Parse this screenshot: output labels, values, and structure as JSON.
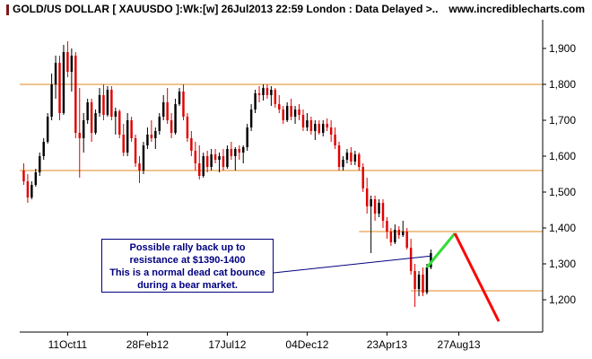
{
  "header": {
    "title": "GOLD/US DOLLAR [ XAUUSDO ]:Wk:[w]  26Jul2013 22:59 London : Data Delayed >..",
    "site": "www.incrediblecharts.com"
  },
  "annotation": {
    "lines": [
      "Possible rally back up to",
      "resistance at $1390-1400",
      "This is a normal dead cat bounce",
      "during a bear market."
    ]
  },
  "chart_data": {
    "type": "candlestick",
    "title": "GOLD/US DOLLAR [ XAUUSDO ]:Wk:[w]  26Jul2013 22:59 London : Data Delayed >..",
    "ylim": [
      1110,
      1980
    ],
    "y_ticks": [
      {
        "value": 1200,
        "label": "1,200"
      },
      {
        "value": 1300,
        "label": "1,300"
      },
      {
        "value": 1400,
        "label": "1,400"
      },
      {
        "value": 1500,
        "label": "1,500"
      },
      {
        "value": 1600,
        "label": "1,600"
      },
      {
        "value": 1700,
        "label": "1,700"
      },
      {
        "value": 1800,
        "label": "1,800"
      },
      {
        "value": 1900,
        "label": "1,900"
      }
    ],
    "x_ticks": [
      {
        "index": 11,
        "label": "11Oct11"
      },
      {
        "index": 31,
        "label": "28Feb12"
      },
      {
        "index": 51,
        "label": "17Jul12"
      },
      {
        "index": 71,
        "label": "04Dec12"
      },
      {
        "index": 91,
        "label": "23Apr13"
      },
      {
        "index": 109,
        "label": "27Aug13"
      }
    ],
    "x_range": [
      -1,
      130
    ],
    "grid": false,
    "colors": {
      "up": "#000000",
      "down": "#e00000",
      "resistance": "#e08a1e",
      "projection_up": "#33dd33",
      "projection_down": "#ff0000",
      "pointer": "#000080"
    },
    "candles": [
      {
        "o": 1560,
        "h": 1580,
        "l": 1520,
        "c": 1530
      },
      {
        "o": 1530,
        "h": 1550,
        "l": 1470,
        "c": 1485
      },
      {
        "o": 1485,
        "h": 1530,
        "l": 1480,
        "c": 1520
      },
      {
        "o": 1520,
        "h": 1565,
        "l": 1515,
        "c": 1555
      },
      {
        "o": 1555,
        "h": 1610,
        "l": 1545,
        "c": 1600
      },
      {
        "o": 1600,
        "h": 1650,
        "l": 1590,
        "c": 1640
      },
      {
        "o": 1640,
        "h": 1720,
        "l": 1635,
        "c": 1710
      },
      {
        "o": 1710,
        "h": 1830,
        "l": 1700,
        "c": 1800
      },
      {
        "o": 1800,
        "h": 1880,
        "l": 1760,
        "c": 1860
      },
      {
        "o": 1860,
        "h": 1880,
        "l": 1700,
        "c": 1720
      },
      {
        "o": 1720,
        "h": 1910,
        "l": 1715,
        "c": 1890
      },
      {
        "o": 1890,
        "h": 1920,
        "l": 1820,
        "c": 1835
      },
      {
        "o": 1835,
        "h": 1900,
        "l": 1780,
        "c": 1880
      },
      {
        "o": 1880,
        "h": 1890,
        "l": 1650,
        "c": 1665
      },
      {
        "o": 1665,
        "h": 1790,
        "l": 1540,
        "c": 1650
      },
      {
        "o": 1650,
        "h": 1720,
        "l": 1610,
        "c": 1700
      },
      {
        "o": 1700,
        "h": 1760,
        "l": 1690,
        "c": 1750
      },
      {
        "o": 1750,
        "h": 1760,
        "l": 1640,
        "c": 1665
      },
      {
        "o": 1665,
        "h": 1730,
        "l": 1660,
        "c": 1720
      },
      {
        "o": 1720,
        "h": 1790,
        "l": 1710,
        "c": 1770
      },
      {
        "o": 1770,
        "h": 1800,
        "l": 1700,
        "c": 1715
      },
      {
        "o": 1715,
        "h": 1795,
        "l": 1710,
        "c": 1785
      },
      {
        "o": 1785,
        "h": 1795,
        "l": 1700,
        "c": 1710
      },
      {
        "o": 1710,
        "h": 1735,
        "l": 1660,
        "c": 1725
      },
      {
        "o": 1725,
        "h": 1730,
        "l": 1650,
        "c": 1660
      },
      {
        "o": 1660,
        "h": 1690,
        "l": 1600,
        "c": 1610
      },
      {
        "o": 1610,
        "h": 1720,
        "l": 1600,
        "c": 1700
      },
      {
        "o": 1700,
        "h": 1710,
        "l": 1640,
        "c": 1650
      },
      {
        "o": 1650,
        "h": 1660,
        "l": 1570,
        "c": 1580
      },
      {
        "o": 1580,
        "h": 1600,
        "l": 1525,
        "c": 1560
      },
      {
        "o": 1560,
        "h": 1640,
        "l": 1550,
        "c": 1630
      },
      {
        "o": 1630,
        "h": 1680,
        "l": 1620,
        "c": 1660
      },
      {
        "o": 1660,
        "h": 1700,
        "l": 1640,
        "c": 1650
      },
      {
        "o": 1650,
        "h": 1680,
        "l": 1620,
        "c": 1670
      },
      {
        "o": 1670,
        "h": 1720,
        "l": 1660,
        "c": 1710
      },
      {
        "o": 1710,
        "h": 1770,
        "l": 1700,
        "c": 1750
      },
      {
        "o": 1750,
        "h": 1790,
        "l": 1690,
        "c": 1700
      },
      {
        "o": 1700,
        "h": 1720,
        "l": 1650,
        "c": 1665
      },
      {
        "o": 1665,
        "h": 1760,
        "l": 1660,
        "c": 1745
      },
      {
        "o": 1745,
        "h": 1790,
        "l": 1740,
        "c": 1780
      },
      {
        "o": 1780,
        "h": 1800,
        "l": 1700,
        "c": 1710
      },
      {
        "o": 1710,
        "h": 1720,
        "l": 1640,
        "c": 1650
      },
      {
        "o": 1650,
        "h": 1670,
        "l": 1600,
        "c": 1615
      },
      {
        "o": 1615,
        "h": 1640,
        "l": 1560,
        "c": 1580
      },
      {
        "o": 1580,
        "h": 1630,
        "l": 1535,
        "c": 1545
      },
      {
        "o": 1545,
        "h": 1610,
        "l": 1540,
        "c": 1600
      },
      {
        "o": 1600,
        "h": 1615,
        "l": 1555,
        "c": 1570
      },
      {
        "o": 1570,
        "h": 1620,
        "l": 1560,
        "c": 1605
      },
      {
        "o": 1605,
        "h": 1620,
        "l": 1580,
        "c": 1590
      },
      {
        "o": 1590,
        "h": 1610,
        "l": 1555,
        "c": 1600
      },
      {
        "o": 1600,
        "h": 1620,
        "l": 1560,
        "c": 1570
      },
      {
        "o": 1570,
        "h": 1630,
        "l": 1565,
        "c": 1620
      },
      {
        "o": 1620,
        "h": 1640,
        "l": 1590,
        "c": 1600
      },
      {
        "o": 1600,
        "h": 1625,
        "l": 1560,
        "c": 1620
      },
      {
        "o": 1620,
        "h": 1630,
        "l": 1590,
        "c": 1610
      },
      {
        "o": 1610,
        "h": 1630,
        "l": 1580,
        "c": 1625
      },
      {
        "o": 1625,
        "h": 1690,
        "l": 1615,
        "c": 1680
      },
      {
        "o": 1680,
        "h": 1745,
        "l": 1670,
        "c": 1730
      },
      {
        "o": 1730,
        "h": 1785,
        "l": 1720,
        "c": 1775
      },
      {
        "o": 1775,
        "h": 1795,
        "l": 1750,
        "c": 1770
      },
      {
        "o": 1770,
        "h": 1800,
        "l": 1755,
        "c": 1790
      },
      {
        "o": 1790,
        "h": 1800,
        "l": 1760,
        "c": 1770
      },
      {
        "o": 1770,
        "h": 1795,
        "l": 1740,
        "c": 1785
      },
      {
        "o": 1785,
        "h": 1790,
        "l": 1735,
        "c": 1745
      },
      {
        "o": 1745,
        "h": 1770,
        "l": 1720,
        "c": 1730
      },
      {
        "o": 1730,
        "h": 1740,
        "l": 1690,
        "c": 1700
      },
      {
        "o": 1700,
        "h": 1750,
        "l": 1695,
        "c": 1740
      },
      {
        "o": 1740,
        "h": 1760,
        "l": 1700,
        "c": 1710
      },
      {
        "o": 1710,
        "h": 1740,
        "l": 1690,
        "c": 1730
      },
      {
        "o": 1730,
        "h": 1745,
        "l": 1700,
        "c": 1715
      },
      {
        "o": 1715,
        "h": 1730,
        "l": 1670,
        "c": 1680
      },
      {
        "o": 1680,
        "h": 1720,
        "l": 1670,
        "c": 1700
      },
      {
        "o": 1700,
        "h": 1710,
        "l": 1660,
        "c": 1670
      },
      {
        "o": 1670,
        "h": 1700,
        "l": 1645,
        "c": 1690
      },
      {
        "o": 1690,
        "h": 1700,
        "l": 1660,
        "c": 1665
      },
      {
        "o": 1665,
        "h": 1700,
        "l": 1655,
        "c": 1690
      },
      {
        "o": 1690,
        "h": 1705,
        "l": 1670,
        "c": 1680
      },
      {
        "o": 1680,
        "h": 1700,
        "l": 1640,
        "c": 1660
      },
      {
        "o": 1660,
        "h": 1680,
        "l": 1620,
        "c": 1630
      },
      {
        "o": 1630,
        "h": 1640,
        "l": 1560,
        "c": 1570
      },
      {
        "o": 1570,
        "h": 1600,
        "l": 1560,
        "c": 1590
      },
      {
        "o": 1590,
        "h": 1620,
        "l": 1580,
        "c": 1610
      },
      {
        "o": 1610,
        "h": 1625,
        "l": 1575,
        "c": 1585
      },
      {
        "o": 1585,
        "h": 1615,
        "l": 1575,
        "c": 1605
      },
      {
        "o": 1605,
        "h": 1610,
        "l": 1560,
        "c": 1570
      },
      {
        "o": 1570,
        "h": 1580,
        "l": 1500,
        "c": 1510
      },
      {
        "o": 1510,
        "h": 1540,
        "l": 1440,
        "c": 1460
      },
      {
        "o": 1460,
        "h": 1490,
        "l": 1330,
        "c": 1480
      },
      {
        "o": 1480,
        "h": 1490,
        "l": 1420,
        "c": 1440
      },
      {
        "o": 1440,
        "h": 1480,
        "l": 1430,
        "c": 1470
      },
      {
        "o": 1470,
        "h": 1480,
        "l": 1400,
        "c": 1420
      },
      {
        "o": 1420,
        "h": 1430,
        "l": 1370,
        "c": 1390
      },
      {
        "o": 1390,
        "h": 1400,
        "l": 1350,
        "c": 1360
      },
      {
        "o": 1360,
        "h": 1410,
        "l": 1355,
        "c": 1395
      },
      {
        "o": 1395,
        "h": 1405,
        "l": 1370,
        "c": 1380
      },
      {
        "o": 1380,
        "h": 1420,
        "l": 1375,
        "c": 1390
      },
      {
        "o": 1390,
        "h": 1400,
        "l": 1340,
        "c": 1345
      },
      {
        "o": 1345,
        "h": 1370,
        "l": 1270,
        "c": 1280
      },
      {
        "o": 1280,
        "h": 1300,
        "l": 1180,
        "c": 1230
      },
      {
        "o": 1230,
        "h": 1280,
        "l": 1210,
        "c": 1270
      },
      {
        "o": 1270,
        "h": 1290,
        "l": 1210,
        "c": 1220
      },
      {
        "o": 1220,
        "h": 1300,
        "l": 1215,
        "c": 1290
      },
      {
        "o": 1290,
        "h": 1340,
        "l": 1285,
        "c": 1330
      }
    ],
    "resistance_lines": [
      {
        "value": 1800,
        "x_from": -1,
        "x_to": 130
      },
      {
        "value": 1560,
        "x_from": -1,
        "x_to": 130
      },
      {
        "value": 1390,
        "x_from": 84,
        "x_to": 130
      },
      {
        "value": 1225,
        "x_from": 97,
        "x_to": 130
      }
    ],
    "projections": [
      {
        "kind": "up",
        "from": {
          "x": 101,
          "y": 1290
        },
        "to": {
          "x": 108,
          "y": 1385
        }
      },
      {
        "kind": "down",
        "from": {
          "x": 108,
          "y": 1385
        },
        "to": {
          "x": 119,
          "y": 1140
        }
      }
    ],
    "pointer": {
      "from_value": 1275,
      "to": {
        "x": 102,
        "y": 1322
      }
    }
  }
}
